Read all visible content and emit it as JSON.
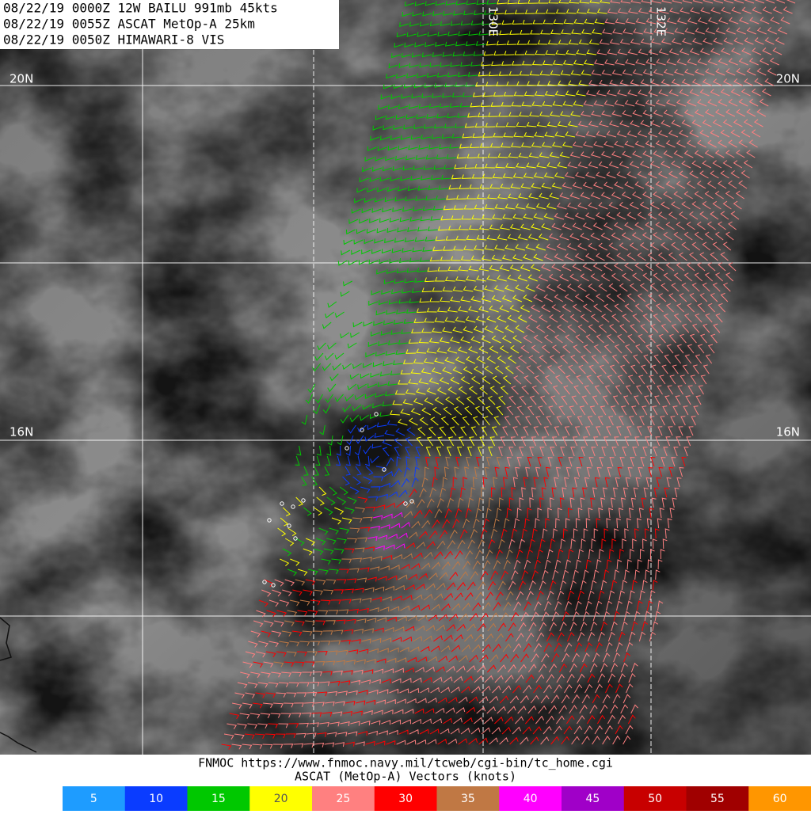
{
  "header": {
    "lines": [
      "08/22/19 0000Z  12W BAILU 991mb 45kts",
      "08/22/19 0055Z  ASCAT MetOp-A 25km",
      "08/22/19 0050Z  HIMAWARI-8 VIS"
    ]
  },
  "map": {
    "lat_labels": {
      "north": "20N",
      "south": "16N"
    },
    "lon_labels": [
      "130E",
      "132E"
    ]
  },
  "footer": {
    "source": "FNMOC https://www.fnmoc.navy.mil/tcweb/cgi-bin/tc_home.cgi",
    "caption": "ASCAT (MetOp-A) Vectors (knots)"
  },
  "colorbar": [
    {
      "value": 5,
      "color": "#1e9cff"
    },
    {
      "value": 10,
      "color": "#0a3cff"
    },
    {
      "value": 15,
      "color": "#00c800"
    },
    {
      "value": 20,
      "color": "#ffff00"
    },
    {
      "value": 25,
      "color": "#ff8080"
    },
    {
      "value": 30,
      "color": "#ff0000"
    },
    {
      "value": 35,
      "color": "#c07844"
    },
    {
      "value": 40,
      "color": "#ff00ff"
    },
    {
      "value": 45,
      "color": "#a000c8"
    },
    {
      "value": 50,
      "color": "#c80000"
    },
    {
      "value": 55,
      "color": "#a00000"
    },
    {
      "value": 60,
      "color": "#ff9600"
    }
  ]
}
